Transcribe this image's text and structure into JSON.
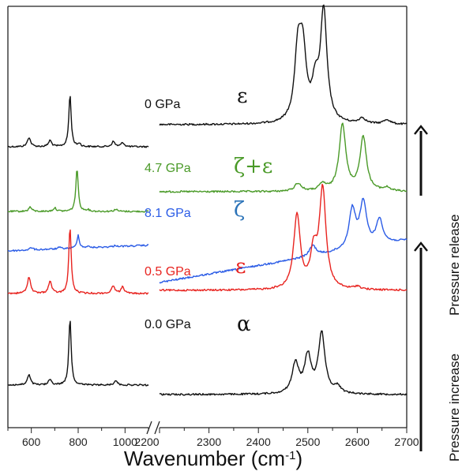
{
  "chart_data": {
    "type": "line",
    "xlabel": "Wavenumber (cm",
    "xlabel_sup": "-1",
    "xlabel_close": ")",
    "x_ticks_left": [
      "600",
      "800",
      "1000",
      "2200"
    ],
    "x_ticks_right": [
      "2300",
      "2400",
      "2500",
      "2600",
      "2700"
    ],
    "xlim_left": [
      500,
      1100
    ],
    "xlim_right": [
      2200,
      2700
    ],
    "y_ticks_visible": false,
    "grid": false,
    "series": [
      {
        "name": "0 GPa",
        "phase": "ε",
        "color": "#111111",
        "phase_color": "#111111",
        "left_peaks": [
          [
            590,
            0.18
          ],
          [
            680,
            0.12
          ],
          [
            765,
            1.0
          ],
          [
            805,
            0.06
          ],
          [
            950,
            0.1
          ],
          [
            990,
            0.08
          ]
        ],
        "right_peaks": [
          [
            2480,
            0.62
          ],
          [
            2490,
            0.58
          ],
          [
            2515,
            0.3
          ],
          [
            2532,
            1.0
          ],
          [
            2610,
            0.05
          ],
          [
            2660,
            0.04
          ]
        ]
      },
      {
        "name": "4.7 GPa",
        "phase": "ζ+ε",
        "color": "#4a9a28",
        "phase_color": "#4a9a28",
        "left_peaks": [
          [
            595,
            0.1
          ],
          [
            700,
            0.08
          ],
          [
            795,
            1.0
          ],
          [
            840,
            0.04
          ],
          [
            960,
            0.05
          ]
        ],
        "right_peaks": [
          [
            2480,
            0.12
          ],
          [
            2530,
            0.1
          ],
          [
            2570,
            1.0
          ],
          [
            2612,
            0.8
          ],
          [
            2660,
            0.05
          ]
        ]
      },
      {
        "name": "8.1 GPa",
        "phase": "ζ",
        "color": "#2b5ce6",
        "phase_color": "#2b73b8",
        "left_peaks": [
          [
            600,
            0.1
          ],
          [
            720,
            0.06
          ],
          [
            800,
            0.55
          ],
          [
            840,
            0.05
          ],
          [
            960,
            0.05
          ]
        ],
        "right_peaks": [
          [
            2510,
            0.15
          ],
          [
            2590,
            0.55
          ],
          [
            2612,
            0.62
          ],
          [
            2645,
            0.35
          ]
        ]
      },
      {
        "name": "0.5 GPa",
        "phase": "ε",
        "color": "#e8231f",
        "phase_color": "#e8231f",
        "left_peaks": [
          [
            590,
            0.25
          ],
          [
            680,
            0.18
          ],
          [
            765,
            1.0
          ],
          [
            950,
            0.12
          ],
          [
            990,
            0.1
          ]
        ],
        "right_peaks": [
          [
            2478,
            0.75
          ],
          [
            2512,
            0.35
          ],
          [
            2530,
            1.0
          ],
          [
            2600,
            0.03
          ]
        ]
      },
      {
        "name": "0.0 GPa",
        "phase": "α",
        "color": "#111111",
        "phase_color": "#111111",
        "left_peaks": [
          [
            590,
            0.15
          ],
          [
            680,
            0.08
          ],
          [
            765,
            1.0
          ],
          [
            960,
            0.07
          ]
        ],
        "right_peaks": [
          [
            2475,
            0.45
          ],
          [
            2500,
            0.55
          ],
          [
            2528,
            0.9
          ],
          [
            2560,
            0.1
          ]
        ]
      }
    ],
    "arrows": [
      {
        "label": "Pressure increase",
        "direction": "up"
      },
      {
        "label": "Pressure release",
        "direction": "up"
      }
    ]
  }
}
